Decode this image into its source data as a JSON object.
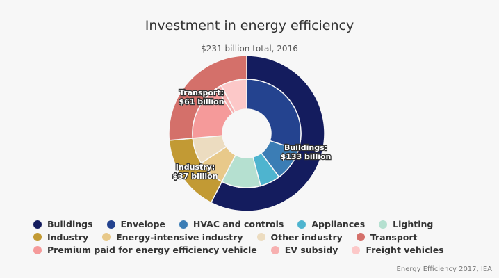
{
  "chart_data": {
    "type": "pie",
    "title": "Investment in energy efficiency",
    "subtitle": "$231 billion total, 2016",
    "unit": "billion USD",
    "outer": [
      {
        "name": "Buildings",
        "value": 133,
        "color": "#141c5e",
        "label": "Buildings:",
        "label2": "$133 billion"
      },
      {
        "name": "Industry",
        "value": 37,
        "color": "#c29a34",
        "label": "Industry:",
        "label2": "$37 billion"
      },
      {
        "name": "Transport",
        "value": 61,
        "color": "#d4706a",
        "label": "Transport:",
        "label2": "$61 billion"
      }
    ],
    "inner": [
      {
        "name": "Envelope",
        "value": 69,
        "color": "#24438f"
      },
      {
        "name": "HVAC and controls",
        "value": 23,
        "color": "#3b7db5"
      },
      {
        "name": "Appliances",
        "value": 14,
        "color": "#4eb4cf"
      },
      {
        "name": "Lighting",
        "value": 27,
        "color": "#b5e0d0"
      },
      {
        "name": "Energy-intensive industry",
        "value": 19,
        "color": "#e8c98a"
      },
      {
        "name": "Other industry",
        "value": 18,
        "color": "#ecdcc0"
      },
      {
        "name": "Premium paid for energy efficiency vehicle",
        "value": 39,
        "color": "#f59a9a"
      },
      {
        "name": "EV subsidy",
        "value": 4,
        "color": "#f7b0b0"
      },
      {
        "name": "Freight vehicles",
        "value": 18,
        "color": "#fcc8c8"
      }
    ],
    "legend": [
      "Buildings",
      "Envelope",
      "HVAC and controls",
      "Appliances",
      "Lighting",
      "Industry",
      "Energy-intensive industry",
      "Other industry",
      "Transport",
      "Premium paid for energy efficiency vehicle",
      "EV subsidy",
      "Freight vehicles"
    ],
    "legend_placement": "bottom"
  },
  "credit": "Energy Efficiency 2017, IEA"
}
